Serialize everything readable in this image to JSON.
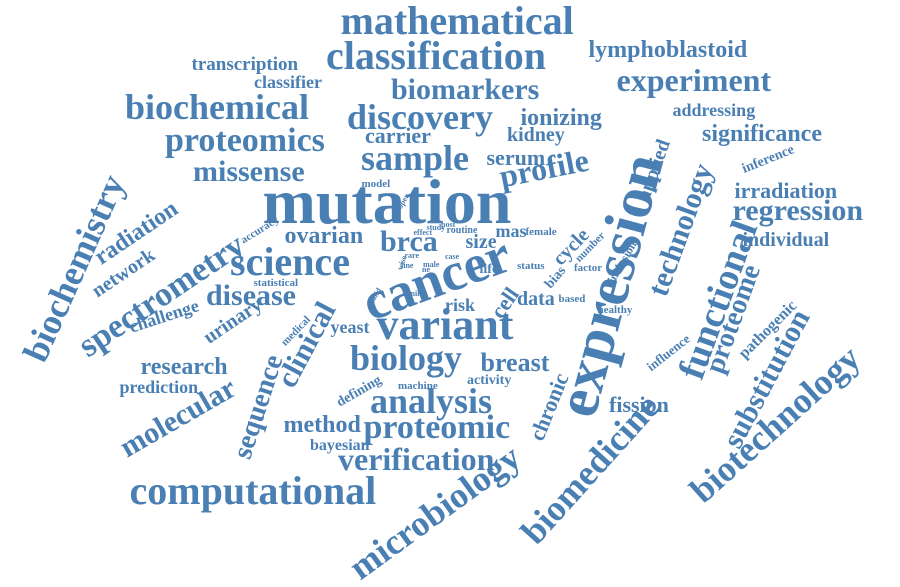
{
  "style": {
    "word_color": "#4a7fb3",
    "background": "#ffffff"
  },
  "words": [
    {
      "id": "mathematical",
      "text": "mathematical"
    },
    {
      "id": "classification",
      "text": "classification"
    },
    {
      "id": "lymphoblastoid",
      "text": "lymphoblastoid"
    },
    {
      "id": "transcription",
      "text": "transcription"
    },
    {
      "id": "classifier",
      "text": "classifier"
    },
    {
      "id": "biomarkers",
      "text": "biomarkers"
    },
    {
      "id": "experiment",
      "text": "experiment"
    },
    {
      "id": "biochemical",
      "text": "biochemical"
    },
    {
      "id": "discovery",
      "text": "discovery"
    },
    {
      "id": "ionizing",
      "text": "ionizing"
    },
    {
      "id": "addressing",
      "text": "addressing"
    },
    {
      "id": "proteomics",
      "text": "proteomics"
    },
    {
      "id": "carrier",
      "text": "carrier"
    },
    {
      "id": "kidney",
      "text": "kidney"
    },
    {
      "id": "significance",
      "text": "significance"
    },
    {
      "id": "sample",
      "text": "sample"
    },
    {
      "id": "serum",
      "text": "serum"
    },
    {
      "id": "missense",
      "text": "missense"
    },
    {
      "id": "profile",
      "text": "profile"
    },
    {
      "id": "mutation",
      "text": "mutation"
    },
    {
      "id": "expression",
      "text": "expression"
    },
    {
      "id": "technology",
      "text": "technology"
    },
    {
      "id": "applied",
      "text": "applied"
    },
    {
      "id": "inference",
      "text": "inference"
    },
    {
      "id": "irradiation",
      "text": "irradiation"
    },
    {
      "id": "regression",
      "text": "regression"
    },
    {
      "id": "biochemistry",
      "text": "biochemistry"
    },
    {
      "id": "spectrometry",
      "text": "spectrometry"
    },
    {
      "id": "radiation",
      "text": "radiation"
    },
    {
      "id": "network",
      "text": "network"
    },
    {
      "id": "model",
      "text": "model"
    },
    {
      "id": "accuracy",
      "text": "accuracy"
    },
    {
      "id": "ovarian",
      "text": "ovarian"
    },
    {
      "id": "brca",
      "text": "brca"
    },
    {
      "id": "science",
      "text": "science"
    },
    {
      "id": "size",
      "text": "size"
    },
    {
      "id": "mas",
      "text": "mas"
    },
    {
      "id": "female",
      "text": "female"
    },
    {
      "id": "cycle",
      "text": "cycle"
    },
    {
      "id": "number",
      "text": "number"
    },
    {
      "id": "inclusion",
      "text": "inclusion"
    },
    {
      "id": "individual",
      "text": "individual"
    },
    {
      "id": "functional",
      "text": "functional"
    },
    {
      "id": "cancer",
      "text": "cancer"
    },
    {
      "id": "disease",
      "text": "disease"
    },
    {
      "id": "statistical",
      "text": "statistical"
    },
    {
      "id": "challenge",
      "text": "challenge"
    },
    {
      "id": "urinary",
      "text": "urinary"
    },
    {
      "id": "clinical",
      "text": "clinical"
    },
    {
      "id": "variant",
      "text": "variant"
    },
    {
      "id": "yeast",
      "text": "yeast"
    },
    {
      "id": "risk",
      "text": "risk"
    },
    {
      "id": "cell",
      "text": "cell"
    },
    {
      "id": "data",
      "text": "data"
    },
    {
      "id": "based",
      "text": "based"
    },
    {
      "id": "healthy",
      "text": "healthy"
    },
    {
      "id": "bias",
      "text": "bias"
    },
    {
      "id": "factor",
      "text": "factor"
    },
    {
      "id": "life",
      "text": "life"
    },
    {
      "id": "status",
      "text": "status"
    },
    {
      "id": "proteome",
      "text": "proteome"
    },
    {
      "id": "substitution",
      "text": "substitution"
    },
    {
      "id": "pathogenic",
      "text": "pathogenic"
    },
    {
      "id": "research",
      "text": "research"
    },
    {
      "id": "prediction",
      "text": "prediction"
    },
    {
      "id": "biology",
      "text": "biology"
    },
    {
      "id": "breast",
      "text": "breast"
    },
    {
      "id": "influence",
      "text": "influence"
    },
    {
      "id": "biotechnology",
      "text": "biotechnology"
    },
    {
      "id": "molecular",
      "text": "molecular"
    },
    {
      "id": "sequence",
      "text": "sequence"
    },
    {
      "id": "medical",
      "text": "medical"
    },
    {
      "id": "defining",
      "text": "defining"
    },
    {
      "id": "machine",
      "text": "machine"
    },
    {
      "id": "activity",
      "text": "activity"
    },
    {
      "id": "analysis",
      "text": "analysis"
    },
    {
      "id": "chronic",
      "text": "chronic"
    },
    {
      "id": "fission",
      "text": "fission"
    },
    {
      "id": "method",
      "text": "method"
    },
    {
      "id": "proteomic",
      "text": "proteomic"
    },
    {
      "id": "bayesian",
      "text": "bayesian"
    },
    {
      "id": "verification",
      "text": "verification"
    },
    {
      "id": "biomedicine",
      "text": "biomedicine"
    },
    {
      "id": "computational",
      "text": "computational"
    },
    {
      "id": "microbiology",
      "text": "microbiology"
    },
    {
      "id": "effect",
      "text": "effect"
    },
    {
      "id": "study",
      "text": "study"
    },
    {
      "id": "post",
      "text": "post"
    },
    {
      "id": "proper",
      "text": "proper"
    },
    {
      "id": "routine",
      "text": "routine"
    },
    {
      "id": "similar",
      "text": "similar"
    },
    {
      "id": "valid",
      "text": "valid"
    },
    {
      "id": "male",
      "text": "male"
    },
    {
      "id": "rare",
      "text": "rare"
    },
    {
      "id": "case",
      "text": "case"
    },
    {
      "id": "wise",
      "text": "wise"
    },
    {
      "id": "line",
      "text": "line"
    },
    {
      "id": "ne",
      "text": "ne"
    }
  ]
}
